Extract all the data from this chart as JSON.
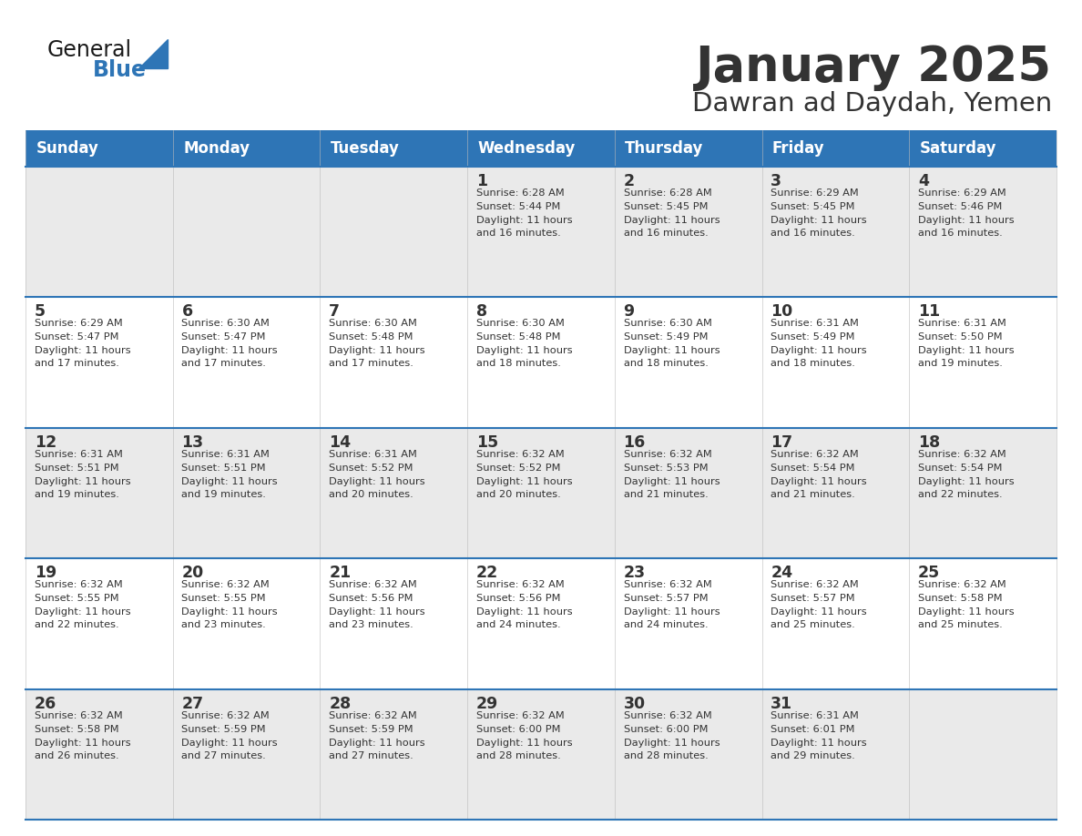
{
  "title": "January 2025",
  "subtitle": "Dawran ad Daydah, Yemen",
  "header_bg": "#2E75B6",
  "header_text_color": "#FFFFFF",
  "row_bg_odd": "#EAEAEA",
  "row_bg_even": "#FFFFFF",
  "separator_color": "#2E75B6",
  "text_color": "#333333",
  "day_headers": [
    "Sunday",
    "Monday",
    "Tuesday",
    "Wednesday",
    "Thursday",
    "Friday",
    "Saturday"
  ],
  "calendar": [
    [
      {
        "day": "",
        "sunrise": "",
        "sunset": "",
        "daylight": ""
      },
      {
        "day": "",
        "sunrise": "",
        "sunset": "",
        "daylight": ""
      },
      {
        "day": "",
        "sunrise": "",
        "sunset": "",
        "daylight": ""
      },
      {
        "day": "1",
        "sunrise": "6:28 AM",
        "sunset": "5:44 PM",
        "daylight": "11 hours and 16 minutes"
      },
      {
        "day": "2",
        "sunrise": "6:28 AM",
        "sunset": "5:45 PM",
        "daylight": "11 hours and 16 minutes"
      },
      {
        "day": "3",
        "sunrise": "6:29 AM",
        "sunset": "5:45 PM",
        "daylight": "11 hours and 16 minutes"
      },
      {
        "day": "4",
        "sunrise": "6:29 AM",
        "sunset": "5:46 PM",
        "daylight": "11 hours and 16 minutes"
      }
    ],
    [
      {
        "day": "5",
        "sunrise": "6:29 AM",
        "sunset": "5:47 PM",
        "daylight": "11 hours and 17 minutes"
      },
      {
        "day": "6",
        "sunrise": "6:30 AM",
        "sunset": "5:47 PM",
        "daylight": "11 hours and 17 minutes"
      },
      {
        "day": "7",
        "sunrise": "6:30 AM",
        "sunset": "5:48 PM",
        "daylight": "11 hours and 17 minutes"
      },
      {
        "day": "8",
        "sunrise": "6:30 AM",
        "sunset": "5:48 PM",
        "daylight": "11 hours and 18 minutes"
      },
      {
        "day": "9",
        "sunrise": "6:30 AM",
        "sunset": "5:49 PM",
        "daylight": "11 hours and 18 minutes"
      },
      {
        "day": "10",
        "sunrise": "6:31 AM",
        "sunset": "5:49 PM",
        "daylight": "11 hours and 18 minutes"
      },
      {
        "day": "11",
        "sunrise": "6:31 AM",
        "sunset": "5:50 PM",
        "daylight": "11 hours and 19 minutes"
      }
    ],
    [
      {
        "day": "12",
        "sunrise": "6:31 AM",
        "sunset": "5:51 PM",
        "daylight": "11 hours and 19 minutes"
      },
      {
        "day": "13",
        "sunrise": "6:31 AM",
        "sunset": "5:51 PM",
        "daylight": "11 hours and 19 minutes"
      },
      {
        "day": "14",
        "sunrise": "6:31 AM",
        "sunset": "5:52 PM",
        "daylight": "11 hours and 20 minutes"
      },
      {
        "day": "15",
        "sunrise": "6:32 AM",
        "sunset": "5:52 PM",
        "daylight": "11 hours and 20 minutes"
      },
      {
        "day": "16",
        "sunrise": "6:32 AM",
        "sunset": "5:53 PM",
        "daylight": "11 hours and 21 minutes"
      },
      {
        "day": "17",
        "sunrise": "6:32 AM",
        "sunset": "5:54 PM",
        "daylight": "11 hours and 21 minutes"
      },
      {
        "day": "18",
        "sunrise": "6:32 AM",
        "sunset": "5:54 PM",
        "daylight": "11 hours and 22 minutes"
      }
    ],
    [
      {
        "day": "19",
        "sunrise": "6:32 AM",
        "sunset": "5:55 PM",
        "daylight": "11 hours and 22 minutes"
      },
      {
        "day": "20",
        "sunrise": "6:32 AM",
        "sunset": "5:55 PM",
        "daylight": "11 hours and 23 minutes"
      },
      {
        "day": "21",
        "sunrise": "6:32 AM",
        "sunset": "5:56 PM",
        "daylight": "11 hours and 23 minutes"
      },
      {
        "day": "22",
        "sunrise": "6:32 AM",
        "sunset": "5:56 PM",
        "daylight": "11 hours and 24 minutes"
      },
      {
        "day": "23",
        "sunrise": "6:32 AM",
        "sunset": "5:57 PM",
        "daylight": "11 hours and 24 minutes"
      },
      {
        "day": "24",
        "sunrise": "6:32 AM",
        "sunset": "5:57 PM",
        "daylight": "11 hours and 25 minutes"
      },
      {
        "day": "25",
        "sunrise": "6:32 AM",
        "sunset": "5:58 PM",
        "daylight": "11 hours and 25 minutes"
      }
    ],
    [
      {
        "day": "26",
        "sunrise": "6:32 AM",
        "sunset": "5:58 PM",
        "daylight": "11 hours and 26 minutes"
      },
      {
        "day": "27",
        "sunrise": "6:32 AM",
        "sunset": "5:59 PM",
        "daylight": "11 hours and 27 minutes"
      },
      {
        "day": "28",
        "sunrise": "6:32 AM",
        "sunset": "5:59 PM",
        "daylight": "11 hours and 27 minutes"
      },
      {
        "day": "29",
        "sunrise": "6:32 AM",
        "sunset": "6:00 PM",
        "daylight": "11 hours and 28 minutes"
      },
      {
        "day": "30",
        "sunrise": "6:32 AM",
        "sunset": "6:00 PM",
        "daylight": "11 hours and 28 minutes"
      },
      {
        "day": "31",
        "sunrise": "6:31 AM",
        "sunset": "6:01 PM",
        "daylight": "11 hours and 29 minutes"
      },
      {
        "day": "",
        "sunrise": "",
        "sunset": "",
        "daylight": ""
      }
    ]
  ],
  "logo_color_general": "#1a1a1a",
  "logo_color_blue": "#2E75B6"
}
